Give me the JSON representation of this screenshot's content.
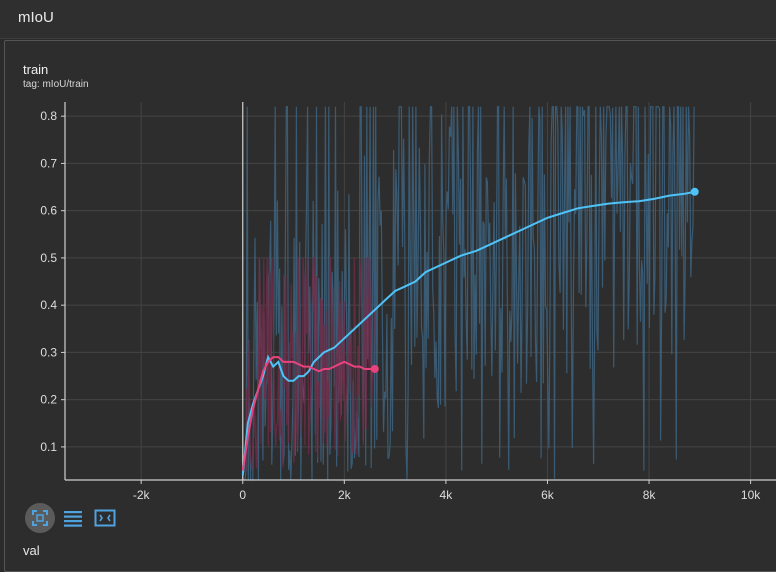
{
  "header": {
    "section_title": "mIoU"
  },
  "card": {
    "title": "train",
    "tag": "tag: mIoU/train"
  },
  "next_card": {
    "title": "val"
  },
  "toolbar": [
    {
      "icon": "expand-icon",
      "active": true
    },
    {
      "icon": "lines-icon",
      "active": false
    },
    {
      "icon": "fit-domain-icon",
      "active": false
    }
  ],
  "chart_data": {
    "type": "line",
    "title": "train",
    "xlabel": "",
    "ylabel": "",
    "xlim": [
      -3500,
      10500
    ],
    "ylim": [
      0.03,
      0.83
    ],
    "xticks": [
      -2000,
      0,
      2000,
      4000,
      6000,
      8000,
      10000
    ],
    "xtick_labels": [
      "-2k",
      "0",
      "2k",
      "4k",
      "6k",
      "8k",
      "10k"
    ],
    "yticks": [
      0.1,
      0.2,
      0.3,
      0.4,
      0.5,
      0.6,
      0.7,
      0.8
    ],
    "ytick_labels": [
      "0.1",
      "0.2",
      "0.3",
      "0.4",
      "0.5",
      "0.6",
      "0.7",
      "0.8"
    ],
    "grid": true,
    "series": [
      {
        "color": "#4fc3f7",
        "raw_color": "#3d6480",
        "raw_range": [
          0.03,
          0.82
        ],
        "x": [
          0,
          100,
          200,
          300,
          400,
          500,
          600,
          700,
          800,
          900,
          1000,
          1100,
          1200,
          1300,
          1400,
          1600,
          1800,
          2000,
          2200,
          2400,
          2600,
          2800,
          3000,
          3200,
          3400,
          3600,
          3800,
          4000,
          4300,
          4600,
          4900,
          5200,
          5500,
          5800,
          6000,
          6300,
          6600,
          6900,
          7200,
          7500,
          7800,
          8100,
          8400,
          8700,
          8900
        ],
        "y": [
          0.04,
          0.15,
          0.19,
          0.22,
          0.25,
          0.29,
          0.27,
          0.28,
          0.25,
          0.24,
          0.24,
          0.25,
          0.25,
          0.26,
          0.28,
          0.3,
          0.31,
          0.33,
          0.35,
          0.37,
          0.39,
          0.41,
          0.43,
          0.44,
          0.45,
          0.47,
          0.48,
          0.49,
          0.505,
          0.515,
          0.53,
          0.545,
          0.56,
          0.575,
          0.585,
          0.595,
          0.605,
          0.61,
          0.615,
          0.618,
          0.62,
          0.625,
          0.632,
          0.636,
          0.64
        ]
      },
      {
        "color": "#e8437d",
        "raw_color": "#6e2d48",
        "raw_range": [
          0.05,
          0.5
        ],
        "x": [
          0,
          100,
          200,
          300,
          400,
          500,
          600,
          700,
          800,
          900,
          1000,
          1100,
          1200,
          1300,
          1400,
          1500,
          1600,
          1700,
          1800,
          1900,
          2000,
          2100,
          2200,
          2300,
          2400,
          2500,
          2600
        ],
        "y": [
          0.05,
          0.12,
          0.18,
          0.22,
          0.26,
          0.28,
          0.29,
          0.29,
          0.28,
          0.28,
          0.28,
          0.275,
          0.27,
          0.27,
          0.265,
          0.26,
          0.265,
          0.265,
          0.27,
          0.275,
          0.28,
          0.275,
          0.27,
          0.27,
          0.265,
          0.265,
          0.265
        ]
      }
    ]
  }
}
